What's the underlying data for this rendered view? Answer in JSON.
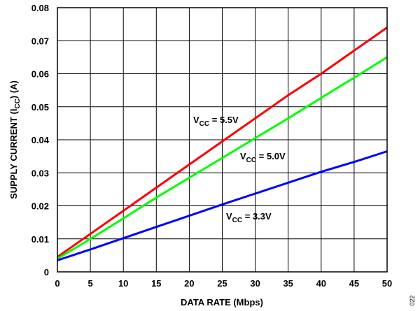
{
  "chart_data": {
    "type": "line",
    "xlabel": "DATA RATE (Mbps)",
    "ylabel": "SUPPLY CURRENT (I",
    "ylabel_subscript": "CC",
    "ylabel_suffix": ") (A)",
    "xlim": [
      0,
      50
    ],
    "ylim": [
      0,
      0.08
    ],
    "x_ticks": [
      0,
      5,
      10,
      15,
      20,
      25,
      30,
      35,
      40,
      45,
      50
    ],
    "x_tick_labels": [
      "0",
      "5",
      "10",
      "15",
      "20",
      "25",
      "30",
      "35",
      "40",
      "45",
      "50"
    ],
    "y_ticks": [
      0,
      0.01,
      0.02,
      0.03,
      0.04,
      0.05,
      0.06,
      0.07,
      0.08
    ],
    "y_tick_labels": [
      "0",
      "0.01",
      "0.02",
      "0.03",
      "0.04",
      "0.05",
      "0.06",
      "0.07",
      "0.08"
    ],
    "grid": true,
    "series": [
      {
        "name_main": "V",
        "name_sub": "CC",
        "name_rest": " = 5.5V",
        "color": "#ff0000",
        "x": [
          0,
          5,
          10,
          15,
          20,
          25,
          30,
          35,
          40,
          45,
          50
        ],
        "values": [
          0.0045,
          0.0115,
          0.0185,
          0.0255,
          0.0325,
          0.0395,
          0.0465,
          0.0535,
          0.06,
          0.067,
          0.074
        ]
      },
      {
        "name_main": "V",
        "name_sub": "CC",
        "name_rest": " = 5.0V",
        "color": "#00ff00",
        "x": [
          0,
          5,
          10,
          15,
          20,
          25,
          30,
          35,
          40,
          45,
          50
        ],
        "values": [
          0.004,
          0.01,
          0.0162,
          0.0225,
          0.0285,
          0.0345,
          0.0405,
          0.0465,
          0.0527,
          0.0588,
          0.065
        ]
      },
      {
        "name_main": "V",
        "name_sub": "CC",
        "name_rest": " = 3.3V",
        "color": "#0000ff",
        "x": [
          0,
          5,
          10,
          15,
          20,
          25,
          30,
          35,
          40,
          45,
          50
        ],
        "values": [
          0.0035,
          0.0068,
          0.0102,
          0.0136,
          0.017,
          0.0204,
          0.0237,
          0.027,
          0.0303,
          0.0333,
          0.0365
        ]
      }
    ],
    "figure_id": "022"
  }
}
